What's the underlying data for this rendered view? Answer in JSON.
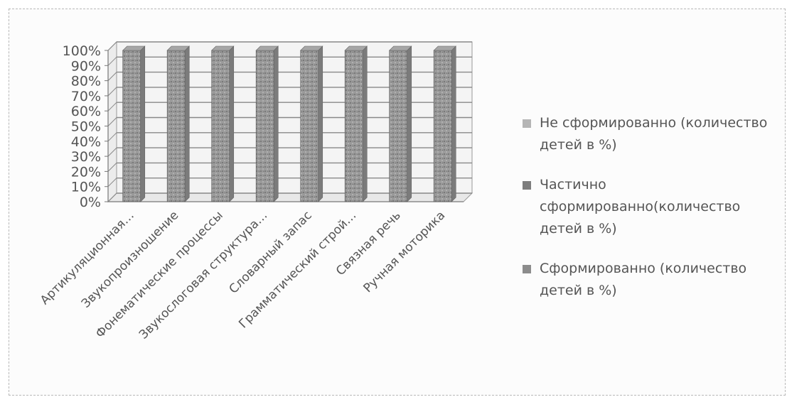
{
  "chart_data": {
    "type": "bar",
    "stacked": true,
    "percent_stacked": true,
    "three_d": true,
    "categories": [
      "Артикуляционная…",
      "Звукопроизношение",
      "Фонематические процессы",
      "Звукослоговая структура…",
      "Словарный запас",
      "Грамматический строй…",
      "Связная речь",
      "Ручная моторика"
    ],
    "y_ticks": [
      "0%",
      "10%",
      "20%",
      "30%",
      "40%",
      "50%",
      "60%",
      "70%",
      "80%",
      "90%",
      "100%"
    ],
    "ylim": [
      0,
      100
    ],
    "grid": true,
    "legend_position": "right",
    "series": [
      {
        "name": "Не сформированно (количество детей в %)",
        "values": [
          0,
          0,
          0,
          0,
          0,
          0,
          0,
          0
        ],
        "color": "#b5b5b5"
      },
      {
        "name": "Частично сформированно(количество детей в %)",
        "values": [
          0,
          0,
          0,
          0,
          0,
          0,
          0,
          0
        ],
        "color": "#7d7d7d"
      },
      {
        "name": "Сформированно (количество детей в %)",
        "values": [
          100,
          100,
          100,
          100,
          100,
          100,
          100,
          100
        ],
        "color": "#8c8c8c"
      }
    ]
  }
}
